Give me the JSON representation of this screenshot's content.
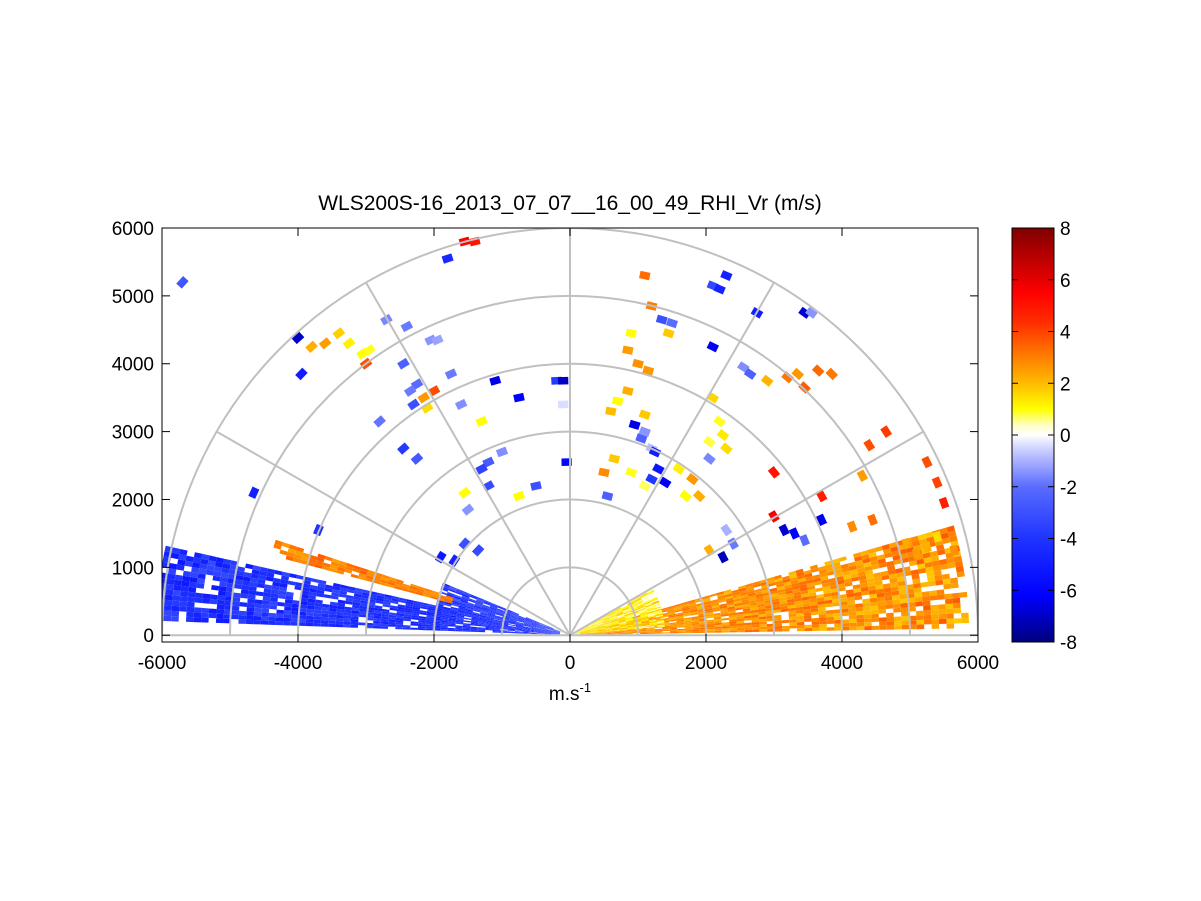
{
  "chart_data": {
    "type": "heatmap",
    "subtype": "polar-rhi-sector",
    "title": "WLS200S-16_2013_07_07__16_00_49_RHI_Vr (m/s)",
    "xlabel_base": "m.s",
    "xlabel_exp": "-1",
    "ylabel": "",
    "xlim": [
      -6000,
      6000
    ],
    "ylim": [
      -100,
      6000
    ],
    "x_ticks": [
      -6000,
      -4000,
      -2000,
      0,
      2000,
      4000,
      6000
    ],
    "y_ticks": [
      0,
      1000,
      2000,
      3000,
      4000,
      5000,
      6000
    ],
    "polar_grid": {
      "range_rings": [
        1000,
        2000,
        3000,
        4000,
        5000,
        6000
      ],
      "azimuth_spokes_deg": [
        0,
        30,
        60,
        90,
        120,
        150,
        180
      ]
    },
    "colorbar": {
      "label": "Vr (m/s)",
      "min": -8,
      "max": 8,
      "ticks": [
        -8,
        -6,
        -4,
        -2,
        0,
        2,
        4,
        6,
        8
      ],
      "colormap": [
        [
          -8,
          "#00007f"
        ],
        [
          -6.2,
          "#0000ff"
        ],
        [
          -4,
          "#1f34ff"
        ],
        [
          -2,
          "#5a6cff"
        ],
        [
          -0.6,
          "#c8ccff"
        ],
        [
          0,
          "#ffffff"
        ],
        [
          0.35,
          "#ffffcc"
        ],
        [
          1,
          "#ffff00"
        ],
        [
          2,
          "#ffbb00"
        ],
        [
          3,
          "#ff7f00"
        ],
        [
          4.3,
          "#ff3000"
        ],
        [
          5.5,
          "#ff0000"
        ],
        [
          8,
          "#7f0000"
        ]
      ]
    },
    "bands": [
      {
        "name": "left low-elevation blue band (approaching)",
        "el_min": 2,
        "el_max": 12,
        "r_min": 150,
        "r_max": 6000,
        "vr_mean": -4.2,
        "vr_jitter": 0.9
      },
      {
        "name": "left mid-elevation blue band",
        "el_min": 12,
        "el_max": 22,
        "r_min": 150,
        "r_max": 2000,
        "vr_mean": -3.8,
        "vr_jitter": 1.0
      },
      {
        "name": "left orange layer",
        "el_min": 15,
        "el_max": 18,
        "r_min": 1800,
        "r_max": 4500,
        "vr_mean": 3.0,
        "vr_jitter": 0.6
      },
      {
        "name": "right low-elevation orange band (receding)",
        "el_min": 1,
        "el_max": 16,
        "r_min": 150,
        "r_max": 5800,
        "vr_mean": 2.7,
        "vr_jitter": 0.8
      },
      {
        "name": "right band near-origin yellow core",
        "el_min": 5,
        "el_max": 30,
        "r_min": 80,
        "r_max": 1300,
        "vr_mean": 1.2,
        "vr_jitter": 0.8
      }
    ],
    "scattered_cells": [
      {
        "x": -3400,
        "y": 4450,
        "vr": 1.7
      },
      {
        "x": -3600,
        "y": 4300,
        "vr": 2.5
      },
      {
        "x": -3800,
        "y": 4250,
        "vr": 2.2
      },
      {
        "x": -3250,
        "y": 4300,
        "vr": 1.2
      },
      {
        "x": -3050,
        "y": 4150,
        "vr": 1.0
      },
      {
        "x": -2950,
        "y": 4200,
        "vr": 0.9
      },
      {
        "x": -4000,
        "y": 4380,
        "vr": -7.0
      },
      {
        "x": -3950,
        "y": 3850,
        "vr": -5.0
      },
      {
        "x": -3000,
        "y": 4000,
        "vr": 3.8
      },
      {
        "x": -2700,
        "y": 4650,
        "vr": -1.6
      },
      {
        "x": -2400,
        "y": 4550,
        "vr": -1.8
      },
      {
        "x": -2050,
        "y": 4350,
        "vr": -1.4
      },
      {
        "x": -1950,
        "y": 4350,
        "vr": -1.2
      },
      {
        "x": -2450,
        "y": 4000,
        "vr": -2.4
      },
      {
        "x": -2250,
        "y": 3700,
        "vr": -2.0
      },
      {
        "x": -2350,
        "y": 3600,
        "vr": -1.8
      },
      {
        "x": -2300,
        "y": 3400,
        "vr": -3.0
      },
      {
        "x": -2150,
        "y": 3500,
        "vr": 2.6
      },
      {
        "x": -2100,
        "y": 3350,
        "vr": 1.5
      },
      {
        "x": -2000,
        "y": 3600,
        "vr": 3.8
      },
      {
        "x": -1750,
        "y": 3850,
        "vr": -1.8
      },
      {
        "x": -1600,
        "y": 3400,
        "vr": -1.5
      },
      {
        "x": -2800,
        "y": 3150,
        "vr": -1.9
      },
      {
        "x": -2450,
        "y": 2750,
        "vr": -3.8
      },
      {
        "x": -2250,
        "y": 2600,
        "vr": -2.7
      },
      {
        "x": -1100,
        "y": 3750,
        "vr": -6.5
      },
      {
        "x": -750,
        "y": 3500,
        "vr": -6.2
      },
      {
        "x": -200,
        "y": 3750,
        "vr": -3.8
      },
      {
        "x": -100,
        "y": 3750,
        "vr": -7.0
      },
      {
        "x": -100,
        "y": 3400,
        "vr": -0.4
      },
      {
        "x": -1300,
        "y": 3150,
        "vr": 1.0
      },
      {
        "x": -1000,
        "y": 2700,
        "vr": -1.5
      },
      {
        "x": -1200,
        "y": 2550,
        "vr": -2.6
      },
      {
        "x": -1300,
        "y": 2450,
        "vr": -3.5
      },
      {
        "x": -1200,
        "y": 2200,
        "vr": -3.2
      },
      {
        "x": -1550,
        "y": 2100,
        "vr": 1.0
      },
      {
        "x": -1500,
        "y": 1850,
        "vr": -1.4
      },
      {
        "x": -750,
        "y": 2050,
        "vr": 1.0
      },
      {
        "x": -500,
        "y": 2200,
        "vr": -3.0
      },
      {
        "x": -50,
        "y": 2550,
        "vr": -6.0
      },
      {
        "x": -5700,
        "y": 5200,
        "vr": -2.8
      },
      {
        "x": -4650,
        "y": 2100,
        "vr": -4.8
      },
      {
        "x": -3700,
        "y": 1550,
        "vr": -4.0
      },
      {
        "x": -1800,
        "y": 5550,
        "vr": -4.5
      },
      {
        "x": -1400,
        "y": 5800,
        "vr": 5.0
      },
      {
        "x": -1550,
        "y": 5800,
        "vr": 5.5
      },
      {
        "x": 1100,
        "y": 5300,
        "vr": 3.3
      },
      {
        "x": 1200,
        "y": 4850,
        "vr": 3.0
      },
      {
        "x": 1350,
        "y": 4650,
        "vr": -3.0
      },
      {
        "x": 1500,
        "y": 4600,
        "vr": -2.0
      },
      {
        "x": 1450,
        "y": 4450,
        "vr": 1.8
      },
      {
        "x": 900,
        "y": 4450,
        "vr": 1.0
      },
      {
        "x": 850,
        "y": 4200,
        "vr": 2.5
      },
      {
        "x": 1000,
        "y": 4000,
        "vr": 2.7
      },
      {
        "x": 1150,
        "y": 3900,
        "vr": 2.6
      },
      {
        "x": 850,
        "y": 3600,
        "vr": 2.2
      },
      {
        "x": 700,
        "y": 3450,
        "vr": 1.0
      },
      {
        "x": 600,
        "y": 3300,
        "vr": 2.0
      },
      {
        "x": 1100,
        "y": 3250,
        "vr": 1.8
      },
      {
        "x": 950,
        "y": 3100,
        "vr": -6.5
      },
      {
        "x": 1050,
        "y": 2900,
        "vr": -2.4
      },
      {
        "x": 1100,
        "y": 3000,
        "vr": -1.4
      },
      {
        "x": 1200,
        "y": 2750,
        "vr": -0.8
      },
      {
        "x": 1250,
        "y": 2700,
        "vr": -5.0
      },
      {
        "x": 1300,
        "y": 2450,
        "vr": -5.3
      },
      {
        "x": 1200,
        "y": 2300,
        "vr": -3.9
      },
      {
        "x": 1400,
        "y": 2250,
        "vr": -6.3
      },
      {
        "x": 1600,
        "y": 2450,
        "vr": 1.2
      },
      {
        "x": 1700,
        "y": 2050,
        "vr": 1.0
      },
      {
        "x": 1800,
        "y": 2300,
        "vr": 2.6
      },
      {
        "x": 1900,
        "y": 2050,
        "vr": 2.2
      },
      {
        "x": 1100,
        "y": 2200,
        "vr": 0.7
      },
      {
        "x": 900,
        "y": 2400,
        "vr": 0.9
      },
      {
        "x": 500,
        "y": 2400,
        "vr": 2.8
      },
      {
        "x": 650,
        "y": 2600,
        "vr": 1.8
      },
      {
        "x": 550,
        "y": 2050,
        "vr": -2.4
      },
      {
        "x": 2100,
        "y": 5150,
        "vr": -3.3
      },
      {
        "x": 2300,
        "y": 5300,
        "vr": -4.8
      },
      {
        "x": 2200,
        "y": 5100,
        "vr": -4.7
      },
      {
        "x": 2100,
        "y": 4250,
        "vr": -6.3
      },
      {
        "x": 2750,
        "y": 4750,
        "vr": -5.0
      },
      {
        "x": 3450,
        "y": 4750,
        "vr": -6.8
      },
      {
        "x": 3550,
        "y": 4750,
        "vr": -1.4
      },
      {
        "x": 2550,
        "y": 3950,
        "vr": -1.5
      },
      {
        "x": 2650,
        "y": 3850,
        "vr": -2.4
      },
      {
        "x": 2900,
        "y": 3750,
        "vr": 2.1
      },
      {
        "x": 3200,
        "y": 3800,
        "vr": 3.2
      },
      {
        "x": 3350,
        "y": 3850,
        "vr": 2.6
      },
      {
        "x": 3450,
        "y": 3650,
        "vr": 3.6
      },
      {
        "x": 3650,
        "y": 3900,
        "vr": 3.4
      },
      {
        "x": 3850,
        "y": 3850,
        "vr": 3.1
      },
      {
        "x": 2100,
        "y": 3500,
        "vr": 1.6
      },
      {
        "x": 2200,
        "y": 3150,
        "vr": 0.9
      },
      {
        "x": 2250,
        "y": 2950,
        "vr": 1.3
      },
      {
        "x": 2050,
        "y": 2850,
        "vr": 0.8
      },
      {
        "x": 2300,
        "y": 2750,
        "vr": 1.5
      },
      {
        "x": 2050,
        "y": 2600,
        "vr": -1.6
      },
      {
        "x": 3000,
        "y": 2400,
        "vr": 5.0
      },
      {
        "x": 4400,
        "y": 2800,
        "vr": 3.8
      },
      {
        "x": 4650,
        "y": 3000,
        "vr": 4.1
      },
      {
        "x": 4300,
        "y": 2350,
        "vr": 2.5
      },
      {
        "x": 5250,
        "y": 2550,
        "vr": 3.8
      },
      {
        "x": 5400,
        "y": 2250,
        "vr": 4.0
      },
      {
        "x": 5500,
        "y": 1950,
        "vr": 4.8
      },
      {
        "x": 3700,
        "y": 2050,
        "vr": 4.8
      },
      {
        "x": 3000,
        "y": 1750,
        "vr": 5.6
      },
      {
        "x": 3150,
        "y": 1550,
        "vr": -6.8
      },
      {
        "x": 3300,
        "y": 1500,
        "vr": -6.2
      },
      {
        "x": 3700,
        "y": 1700,
        "vr": -6.4
      },
      {
        "x": 4150,
        "y": 1600,
        "vr": 2.8
      },
      {
        "x": 4450,
        "y": 1700,
        "vr": 3.3
      },
      {
        "x": 3450,
        "y": 1400,
        "vr": -2.0
      },
      {
        "x": 2300,
        "y": 1550,
        "vr": -1.0
      },
      {
        "x": 2400,
        "y": 1350,
        "vr": -1.8
      },
      {
        "x": 2250,
        "y": 1150,
        "vr": -7.2
      },
      {
        "x": 2050,
        "y": 1250,
        "vr": 2.2
      },
      {
        "x": 5250,
        "y": 1300,
        "vr": 2.2
      },
      {
        "x": 5650,
        "y": 1250,
        "vr": 2.7
      },
      {
        "x": 5100,
        "y": 1200,
        "vr": 2.5
      },
      {
        "x": 4950,
        "y": 1350,
        "vr": 2.3
      },
      {
        "x": 5400,
        "y": 1450,
        "vr": 1.5
      },
      {
        "x": -1350,
        "y": 1250,
        "vr": -3.2
      },
      {
        "x": -1700,
        "y": 1100,
        "vr": -4.8
      },
      {
        "x": -1900,
        "y": 1150,
        "vr": -5.2
      },
      {
        "x": -1550,
        "y": 1350,
        "vr": -3.0
      }
    ]
  }
}
